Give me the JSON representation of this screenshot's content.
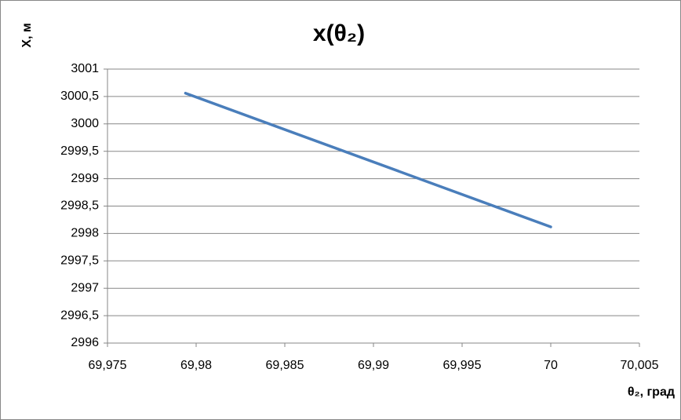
{
  "chart_data": {
    "type": "line",
    "title": "x(θ₂)",
    "x_label": "θ₂, град",
    "y_label": "X, м",
    "x": [
      69.9794,
      70
    ],
    "series": [
      {
        "color": "#4a7ebb",
        "values": [
          3000.56,
          2998.12
        ]
      }
    ],
    "xlim": [
      69.975,
      70.005
    ],
    "xticks": [
      {
        "value": 69.975,
        "label": "69,975"
      },
      {
        "value": 69.98,
        "label": "69,98"
      },
      {
        "value": 69.985,
        "label": "69,985"
      },
      {
        "value": 69.99,
        "label": "69,99"
      },
      {
        "value": 69.995,
        "label": "69,995"
      },
      70,
      {
        "value": 70.005,
        "label": "70,005"
      }
    ],
    "ylim": [
      2996,
      3001
    ],
    "yticks": [
      2996,
      {
        "value": 2996.5,
        "label": "2996,5"
      },
      2997,
      {
        "value": 2997.5,
        "label": "2997,5"
      },
      2998,
      {
        "value": 2998.5,
        "label": "2998,5"
      },
      2999,
      {
        "value": 2999.5,
        "label": "2999,5"
      },
      3000,
      {
        "value": 3000.5,
        "label": "3000,5"
      },
      3001
    ],
    "grid": "y"
  }
}
